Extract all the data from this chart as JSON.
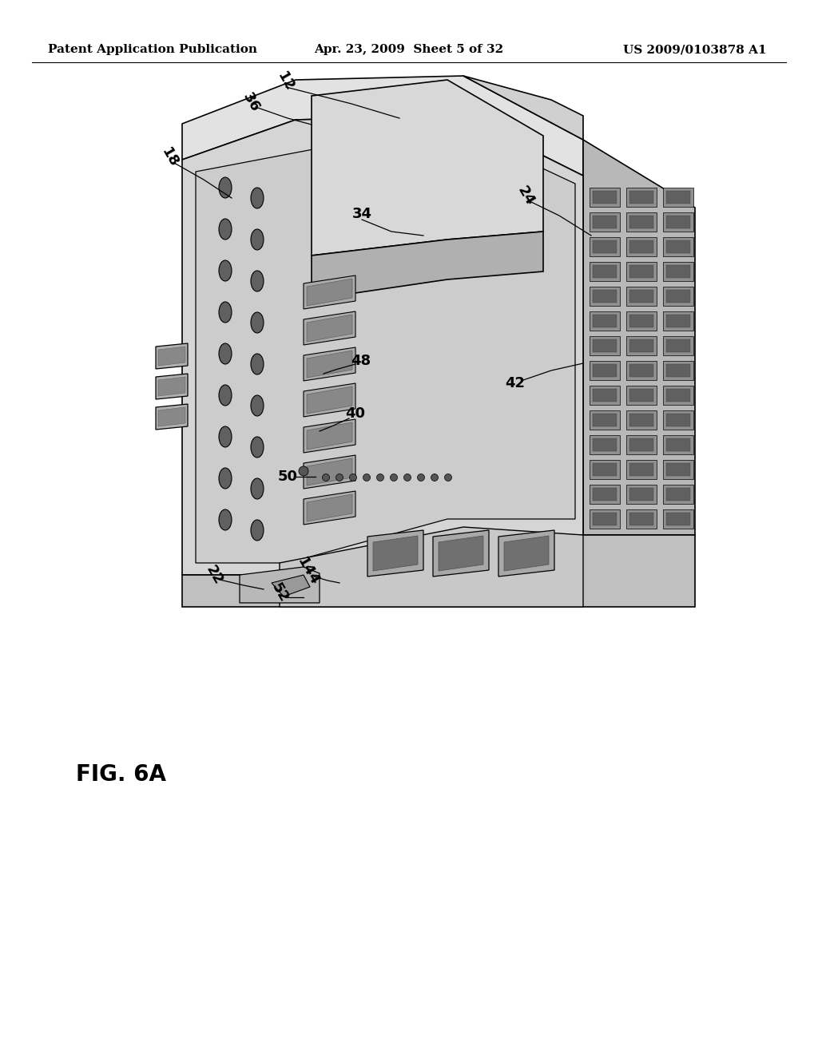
{
  "background_color": "#ffffff",
  "header_left": "Patent Application Publication",
  "header_center": "Apr. 23, 2009  Sheet 5 of 32",
  "header_right": "US 2009/0103878 A1",
  "figure_label": "FIG. 6A",
  "line_color": "#000000",
  "label_fontsize": 13,
  "header_fontsize": 11,
  "fig_label_fontsize": 20
}
